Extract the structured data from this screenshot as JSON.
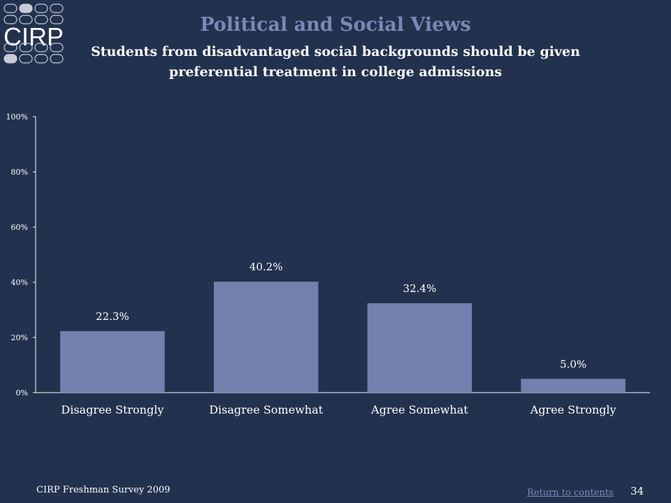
{
  "logo": {
    "text": "CIRP"
  },
  "header": {
    "title": "Political and Social Views",
    "subtitle": "Students from disadvantaged social backgrounds should be given preferential treatment in college admissions"
  },
  "chart_data": {
    "type": "bar",
    "categories": [
      "Disagree Strongly",
      "Disagree Somewhat",
      "Agree Somewhat",
      "Agree Strongly"
    ],
    "values": [
      22.3,
      40.2,
      32.4,
      5.0
    ],
    "data_labels": [
      "22.3%",
      "40.2%",
      "32.4%",
      "5.0%"
    ],
    "ylim": [
      0,
      100
    ],
    "yticks": [
      0,
      20,
      40,
      60,
      80,
      100
    ],
    "ytick_labels": [
      "0%",
      "20%",
      "40%",
      "60%",
      "80%",
      "100%"
    ],
    "grid": false,
    "legend": "none",
    "bar_color": "#7480ad"
  },
  "footer": {
    "left": "CIRP Freshman Survey 2009",
    "link": "Return to contents",
    "page": "34"
  }
}
